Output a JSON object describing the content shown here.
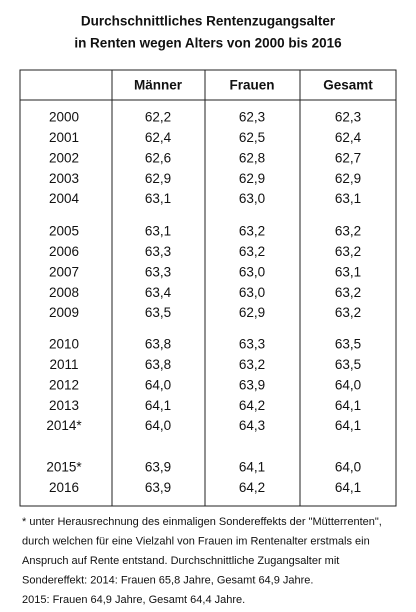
{
  "header": {
    "title_lines": [
      "Durchschnittliches Rentenzugangsalter",
      "in Renten wegen Alters von 2000 bis 2016"
    ]
  },
  "table": {
    "columns": [
      "Männer",
      "Frauen",
      "Gesamt"
    ],
    "row_groups": [
      [
        [
          "2000",
          "62,2",
          "62,3",
          "62,3"
        ],
        [
          "2001",
          "62,4",
          "62,5",
          "62,4"
        ],
        [
          "2002",
          "62,6",
          "62,8",
          "62,7"
        ],
        [
          "2003",
          "62,9",
          "62,9",
          "62,9"
        ],
        [
          "2004",
          "63,1",
          "63,0",
          "63,1"
        ]
      ],
      [
        [
          "2005",
          "63,1",
          "63,2",
          "63,2"
        ],
        [
          "2006",
          "63,3",
          "63,2",
          "63,2"
        ],
        [
          "2007",
          "63,3",
          "63,0",
          "63,1"
        ],
        [
          "2008",
          "63,4",
          "63,0",
          "63,2"
        ],
        [
          "2009",
          "63,5",
          "62,9",
          "63,2"
        ]
      ],
      [
        [
          "2010",
          "63,8",
          "63,3",
          "63,5"
        ],
        [
          "2011",
          "63,8",
          "63,2",
          "63,5"
        ],
        [
          "2012",
          "64,0",
          "63,9",
          "64,0"
        ],
        [
          "2013",
          "64,1",
          "64,2",
          "64,1"
        ],
        [
          "2014*",
          "64,0",
          "64,3",
          "64,1"
        ]
      ],
      [
        [
          "2015*",
          "63,9",
          "64,1",
          "64,0"
        ],
        [
          "2016",
          "63,9",
          "64,2",
          "64,1"
        ]
      ]
    ]
  },
  "footnote": {
    "lines": [
      "* unter Herausrechnung des einmaligen Sondereffekts der \"Mütterrenten\",",
      "durch welchen für eine Vielzahl von Frauen im Rentenalter erstmals ein",
      "Anspruch auf Rente entstand. Durchschnittliche Zugangsalter mit",
      "Sondereffekt: 2014: Frauen 65,8 Jahre, Gesamt 64,9 Jahre.",
      "2015: Frauen 64,9 Jahre, Gesamt 64,4 Jahre."
    ]
  }
}
